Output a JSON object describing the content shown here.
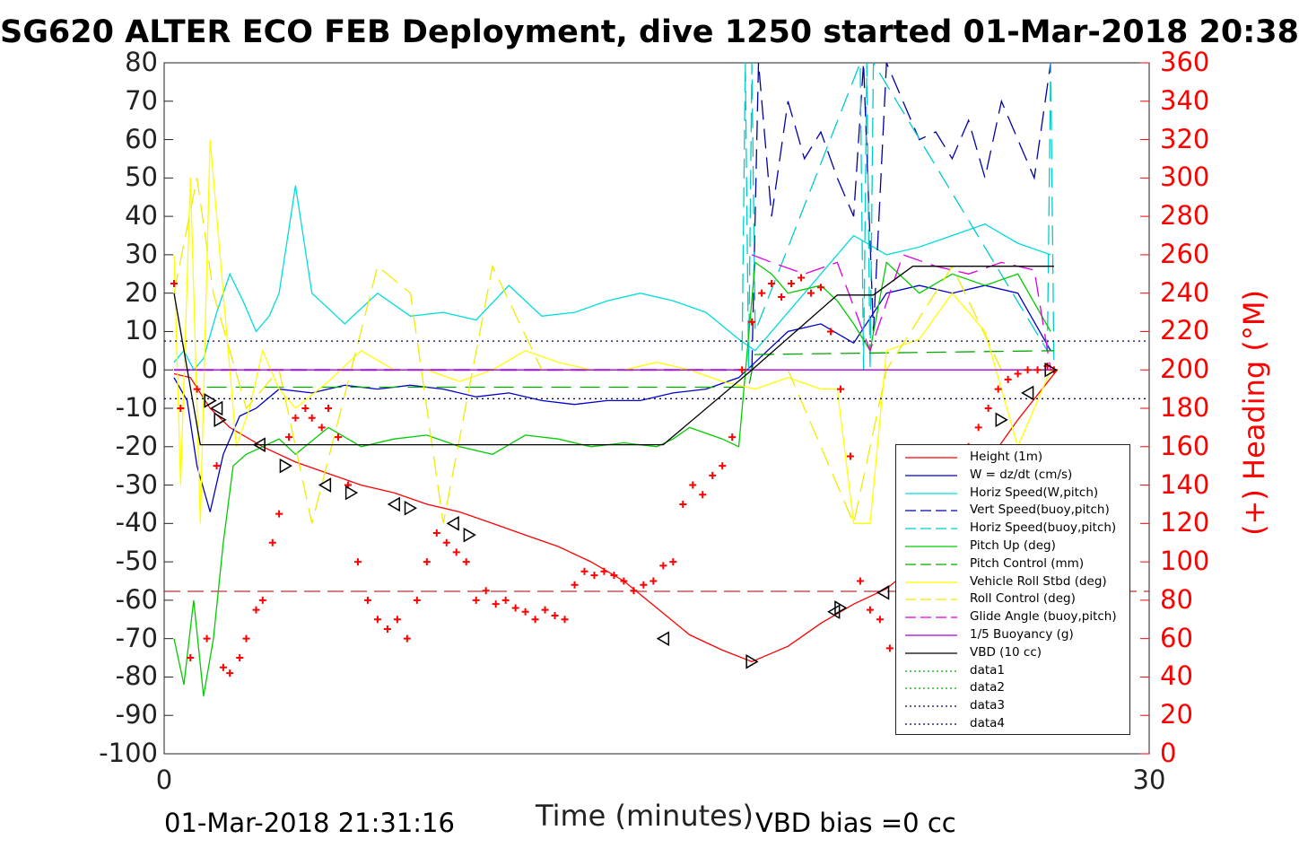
{
  "chart_data": {
    "type": "line",
    "title": "SG620 ALTER ECO FEB Deployment, dive 1250 started 01-Mar-2018 20:38",
    "xlabel": "Time (minutes)",
    "ylabel_right": "(+) Heading (°M)",
    "xlim": [
      0,
      30
    ],
    "ylim_left": [
      -100,
      80
    ],
    "ylim_right": [
      0,
      360
    ],
    "x_ticks": [
      "0",
      "30"
    ],
    "y_ticks_left": [
      "80",
      "70",
      "60",
      "50",
      "40",
      "30",
      "20",
      "10",
      "0",
      "-10",
      "-20",
      "-30",
      "-40",
      "-50",
      "-60",
      "-70",
      "-80",
      "-90",
      "-100"
    ],
    "y_ticks_right": [
      "360",
      "340",
      "320",
      "300",
      "280",
      "260",
      "240",
      "220",
      "200",
      "180",
      "160",
      "140",
      "120",
      "100",
      "80",
      "60",
      "40",
      "20",
      "0"
    ],
    "legend_position": "lower-right",
    "footer_left": "01-Mar-2018 21:31:16",
    "footer_right": "VBD bias =0 cc",
    "series": [
      {
        "name": "Height (1m)",
        "color": "#ff0000",
        "style": "solid",
        "x": [
          0.3,
          0.8,
          1.4,
          2.0,
          3.0,
          4.0,
          5.0,
          6.0,
          7.0,
          8.0,
          9.0,
          10.0,
          11.0,
          12.0,
          13.0,
          14.0,
          15.0,
          16.0,
          17.0,
          17.9,
          19.0,
          20.0,
          21.0,
          22.0,
          23.0,
          24.0,
          25.0,
          26.0,
          27.2
        ],
        "y": [
          -1,
          -2,
          -10,
          -15,
          -20,
          -24,
          -27,
          -30,
          -32,
          -35,
          -37,
          -40,
          -43,
          -46,
          -50,
          -55,
          -62,
          -69,
          -73,
          -76,
          -72,
          -66,
          -61,
          -57,
          -50,
          -38,
          -25,
          -13,
          0
        ]
      },
      {
        "name": "W = dz/dt (cm/s)",
        "color": "#0000cc",
        "style": "solid",
        "x": [
          0.3,
          0.7,
          1.0,
          1.4,
          1.8,
          2.3,
          2.8,
          3.5,
          4.5,
          5.5,
          6.5,
          7.5,
          8.5,
          9.5,
          10.5,
          11.5,
          12.5,
          13.5,
          14.5,
          15.5,
          16.5,
          17.5,
          18.0,
          19.0,
          20.0,
          21.0,
          22.0,
          23.0,
          24.0,
          25.0,
          26.0,
          27.0
        ],
        "y": [
          -2,
          -8,
          -25,
          -37,
          -22,
          -12,
          -10,
          -5,
          -6,
          -4,
          -5,
          -4,
          -5,
          -7,
          -6,
          -8,
          -9,
          -8,
          -8,
          -6,
          -5,
          -2,
          2,
          10,
          12,
          7,
          20,
          22,
          20,
          22,
          20,
          5
        ]
      },
      {
        "name": "Horiz Speed(W,pitch)",
        "color": "#00dddd",
        "style": "solid",
        "x": [
          0.3,
          0.6,
          0.9,
          1.2,
          1.6,
          2.0,
          2.4,
          2.8,
          3.2,
          3.5,
          4.0,
          4.5,
          5.0,
          5.5,
          6.5,
          7.5,
          8.5,
          9.5,
          10.5,
          11.5,
          12.5,
          13.5,
          14.5,
          15.5,
          16.5,
          17.5,
          18.0,
          19.0,
          20.0,
          21.0,
          22.0,
          23.0,
          24.0,
          25.0,
          26.0,
          27.0
        ],
        "y": [
          2,
          5,
          0,
          3,
          15,
          25,
          18,
          10,
          14,
          20,
          48,
          20,
          16,
          12,
          20,
          14,
          15,
          13,
          22,
          14,
          15,
          18,
          20,
          18,
          15,
          8,
          5,
          15,
          25,
          35,
          30,
          32,
          35,
          38,
          33,
          30
        ]
      },
      {
        "name": "Vert Speed(buoy,pitch)",
        "color": "#0000aa",
        "style": "dashed",
        "x": [
          17.9,
          18.1,
          18.5,
          19.0,
          19.5,
          20.0,
          20.5,
          21.0,
          21.3,
          21.6,
          22.0,
          22.5,
          23.0,
          23.5,
          24.0,
          24.5,
          25.0,
          25.5,
          26.0,
          26.5,
          27.0
        ],
        "y": [
          0,
          80,
          40,
          70,
          55,
          62,
          50,
          40,
          80,
          10,
          80,
          70,
          60,
          62,
          55,
          65,
          50,
          70,
          60,
          50,
          80
        ]
      },
      {
        "name": "Horiz Speed(buoy,pitch)",
        "color": "#00cccc",
        "style": "dashed",
        "x": [
          17.6,
          17.7,
          17.8,
          17.9,
          18.0,
          21.2,
          21.3,
          21.4,
          21.5,
          21.6,
          26.9,
          27.0,
          27.1
        ],
        "y": [
          5,
          80,
          0,
          80,
          10,
          80,
          0,
          80,
          0,
          80,
          5,
          80,
          0
        ]
      },
      {
        "name": "Pitch Up (deg)",
        "color": "#00cc00",
        "style": "solid",
        "x": [
          0.3,
          0.6,
          0.9,
          1.2,
          1.5,
          1.8,
          2.1,
          2.5,
          3.0,
          3.5,
          4.0,
          5.0,
          6.0,
          7.0,
          8.0,
          9.0,
          10.0,
          11.0,
          12.0,
          13.0,
          14.0,
          15.0,
          15.5,
          16.0,
          17.0,
          17.5,
          18.0,
          18.5,
          19.0,
          20.0,
          20.5,
          21.0,
          21.5,
          22.0,
          23.0,
          24.0,
          25.0,
          26.0,
          27.0
        ],
        "y": [
          -70,
          -82,
          -60,
          -85,
          -70,
          -45,
          -25,
          -22,
          -20,
          -18,
          -22,
          -15,
          -20,
          -18,
          -17,
          -20,
          -22,
          -17,
          -18,
          -20,
          -19,
          -20,
          -18,
          -15,
          -18,
          -20,
          28,
          25,
          20,
          22,
          18,
          12,
          5,
          28,
          20,
          25,
          22,
          25,
          10
        ]
      },
      {
        "name": "Pitch Control (mm)",
        "color": "#00aa00",
        "style": "dashed",
        "x": [
          1.3,
          2.0,
          15.5,
          17.8,
          18.0,
          27.1
        ],
        "y": [
          -4.5,
          -4.5,
          -4.5,
          -4.5,
          4,
          5
        ]
      },
      {
        "name": "Vehicle Roll Stbd (deg)",
        "color": "#ffff00",
        "style": "solid",
        "x": [
          0.3,
          0.5,
          0.8,
          1.1,
          1.4,
          1.8,
          2.2,
          2.6,
          3.0,
          3.5,
          4.0,
          5.0,
          6.0,
          7.0,
          8.0,
          9.0,
          10.0,
          11.0,
          12.0,
          13.0,
          14.0,
          15.0,
          16.0,
          17.0,
          18.0,
          19.0,
          20.0,
          20.5,
          21.0,
          21.5,
          22.0,
          23.0,
          24.0,
          25.0,
          26.0,
          27.0
        ],
        "y": [
          30,
          -30,
          50,
          -40,
          60,
          20,
          -20,
          -10,
          5,
          -5,
          -10,
          -3,
          5,
          0,
          0,
          -3,
          0,
          5,
          2,
          0,
          0,
          2,
          0,
          -3,
          -5,
          -2,
          -5,
          -5,
          -40,
          -40,
          5,
          8,
          20,
          10,
          -20,
          0
        ]
      },
      {
        "name": "Roll Control (deg)",
        "color": "#eeee00",
        "style": "dashed",
        "x": [
          0.3,
          1.0,
          1.5,
          2.5,
          3.5,
          4.5,
          6.5,
          7.5,
          8.5,
          10.0,
          11.5,
          13.0,
          15.0,
          17.0,
          19.0,
          21.0,
          22.0,
          24.0,
          25.5,
          27.0
        ],
        "y": [
          20,
          50,
          20,
          -10,
          0,
          -40,
          27,
          20,
          -40,
          27,
          0,
          0,
          0,
          0,
          0,
          -40,
          0,
          27,
          0,
          0
        ]
      },
      {
        "name": "Glide Angle (buoy,pitch)",
        "color": "#dd00dd",
        "style": "dashed",
        "x": [
          17.9,
          18.5,
          19.5,
          20.5,
          21.5,
          22.5,
          23.5,
          24.5,
          25.5,
          26.5,
          27.0
        ],
        "y": [
          30,
          28,
          25,
          28,
          5,
          30,
          27,
          25,
          28,
          26,
          0
        ]
      },
      {
        "name": "1/5 Buoyancy (g)",
        "color": "#aa00dd",
        "style": "solid",
        "x": [
          0.3,
          17.8,
          18.0,
          21.3,
          21.4,
          21.7,
          21.8,
          27.1
        ],
        "y": [
          0,
          0,
          0,
          0,
          0,
          0,
          0,
          0
        ]
      },
      {
        "name": "VBD (10 cc)",
        "color": "#000000",
        "style": "solid",
        "x": [
          0.3,
          1.1,
          15.2,
          17.9,
          20.5,
          21.6,
          22.8,
          27.1
        ],
        "y": [
          20,
          -19.5,
          -19.5,
          0,
          19.5,
          19.5,
          27,
          27
        ]
      },
      {
        "name": "data1",
        "color": "#00aa00",
        "style": "dotted",
        "x": [],
        "y": []
      },
      {
        "name": "data2",
        "color": "#00aa00",
        "style": "dotted",
        "x": [],
        "y": []
      },
      {
        "name": "data3",
        "color": "#000066",
        "style": "dotted",
        "x": [
          0,
          30
        ],
        "y": [
          7.5,
          7.5
        ]
      },
      {
        "name": "data4",
        "color": "#000066",
        "style": "dotted",
        "x": [
          0,
          30
        ],
        "y": [
          -7.5,
          -7.5
        ]
      }
    ],
    "heading_series": {
      "color": "#ff0000",
      "marker": "+",
      "axis": "right",
      "x": [
        0.3,
        0.5,
        0.8,
        1.0,
        1.3,
        1.6,
        1.8,
        2.0,
        2.3,
        2.5,
        2.8,
        3.0,
        3.3,
        3.5,
        3.8,
        4.0,
        4.3,
        4.5,
        4.8,
        5.0,
        5.3,
        5.6,
        5.9,
        6.2,
        6.5,
        6.8,
        7.1,
        7.4,
        7.7,
        8.0,
        8.3,
        8.6,
        8.9,
        9.2,
        9.5,
        9.8,
        10.1,
        10.4,
        10.7,
        11.0,
        11.3,
        11.6,
        11.9,
        12.2,
        12.5,
        12.8,
        13.1,
        13.4,
        13.7,
        14.0,
        14.3,
        14.6,
        14.9,
        15.2,
        15.5,
        15.8,
        16.1,
        16.4,
        16.7,
        17.0,
        17.3,
        17.6,
        17.9,
        18.2,
        18.5,
        18.8,
        19.1,
        19.4,
        19.7,
        20.0,
        20.3,
        20.6,
        20.9,
        21.2,
        21.5,
        21.8,
        22.1,
        22.4,
        22.7,
        23.0,
        23.3,
        23.6,
        23.9,
        24.2,
        24.5,
        24.8,
        25.1,
        25.4,
        25.7,
        26.0,
        26.3,
        26.6,
        26.9,
        27.1
      ],
      "y": [
        245,
        180,
        50,
        190,
        60,
        150,
        45,
        42,
        50,
        60,
        75,
        80,
        110,
        125,
        165,
        175,
        180,
        175,
        170,
        180,
        165,
        140,
        100,
        80,
        70,
        65,
        70,
        60,
        80,
        100,
        115,
        110,
        105,
        100,
        80,
        85,
        78,
        80,
        76,
        74,
        70,
        75,
        72,
        70,
        88,
        95,
        93,
        95,
        93,
        90,
        85,
        88,
        90,
        98,
        100,
        130,
        140,
        135,
        145,
        150,
        165,
        200,
        225,
        240,
        245,
        238,
        245,
        248,
        240,
        243,
        220,
        190,
        155,
        90,
        75,
        70,
        55,
        52,
        60,
        80,
        100,
        120,
        140,
        150,
        160,
        170,
        180,
        190,
        195,
        198,
        200,
        200,
        202,
        200
      ]
    },
    "markers": {
      "color": "#000000",
      "x": [
        1.4,
        1.6,
        1.7,
        2.9,
        3.7,
        4.9,
        5.7,
        7.0,
        7.5,
        8.8,
        9.3,
        15.2,
        17.9,
        20.4,
        20.6,
        21.9,
        25.5,
        26.3,
        27.0
      ],
      "y": [
        -8,
        -10,
        -13,
        -19.5,
        -25,
        -30,
        -32,
        -35,
        -36,
        -40,
        -43,
        -70,
        -76,
        -63,
        -62,
        -58,
        -13,
        -6,
        0
      ]
    },
    "ref_lines": {
      "red_dashed_y": -57.7,
      "purple_dashed_y": 0
    }
  }
}
